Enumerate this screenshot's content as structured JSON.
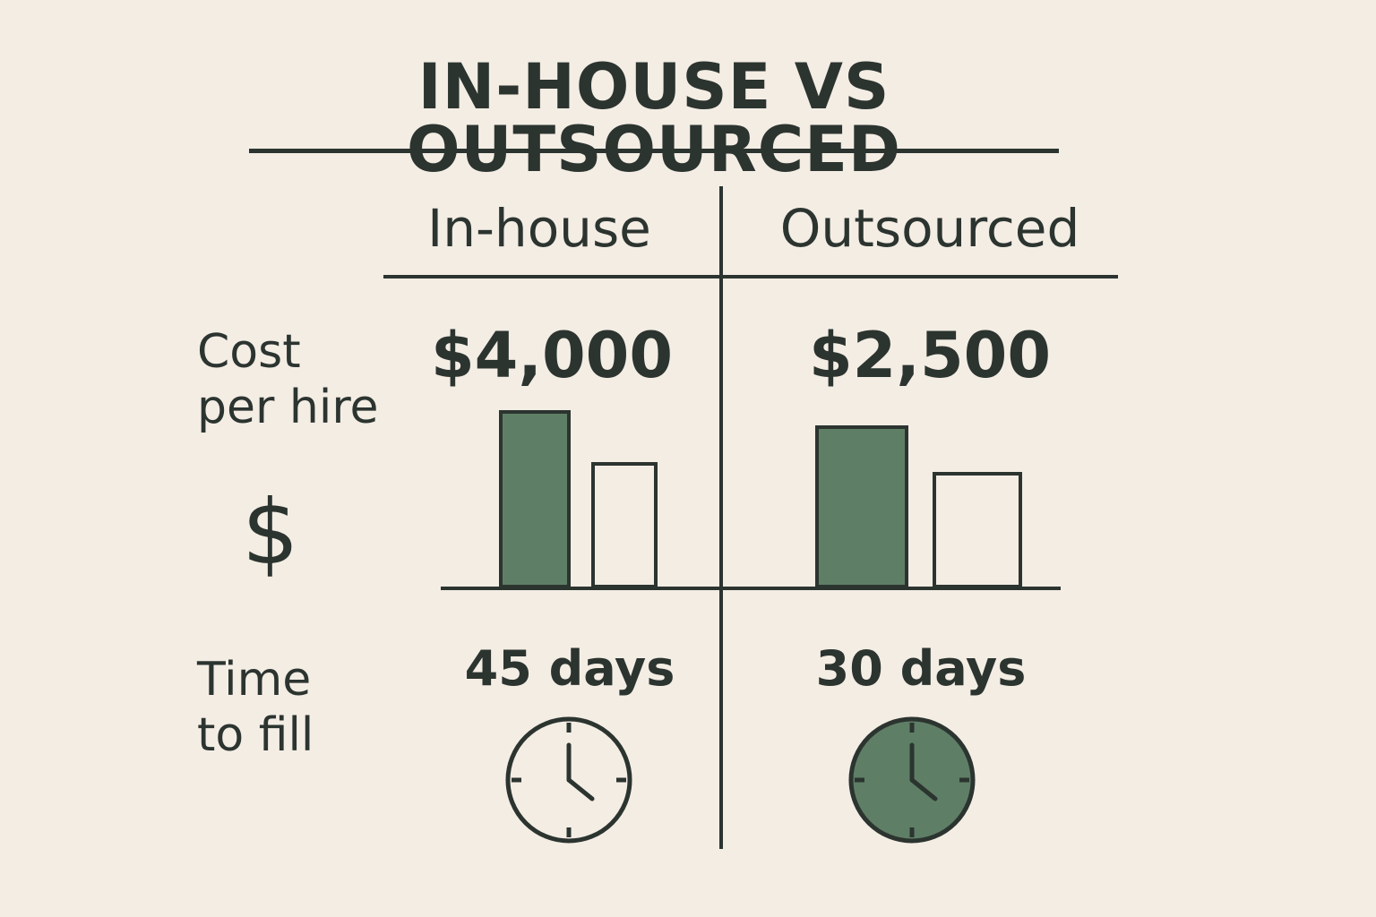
{
  "title": "IN-HOUSE VS OUTSOURCED",
  "columns": [
    "In-house",
    "Outsourced"
  ],
  "rows": {
    "cost": {
      "label_line1": "Cost",
      "label_line2": "per hire",
      "icon": "dollar-icon",
      "icon_glyph": "$"
    },
    "time": {
      "label_line1": "Time",
      "label_line2": "to fill",
      "icon": "clock-icon"
    }
  },
  "in_house": {
    "cost": "$4,000",
    "time": "45 days"
  },
  "outsourced": {
    "cost": "$2,500",
    "time": "30 days"
  },
  "colors": {
    "accent": "#5e7f66",
    "ink": "#2c3430",
    "background": "#f3ede4"
  }
}
